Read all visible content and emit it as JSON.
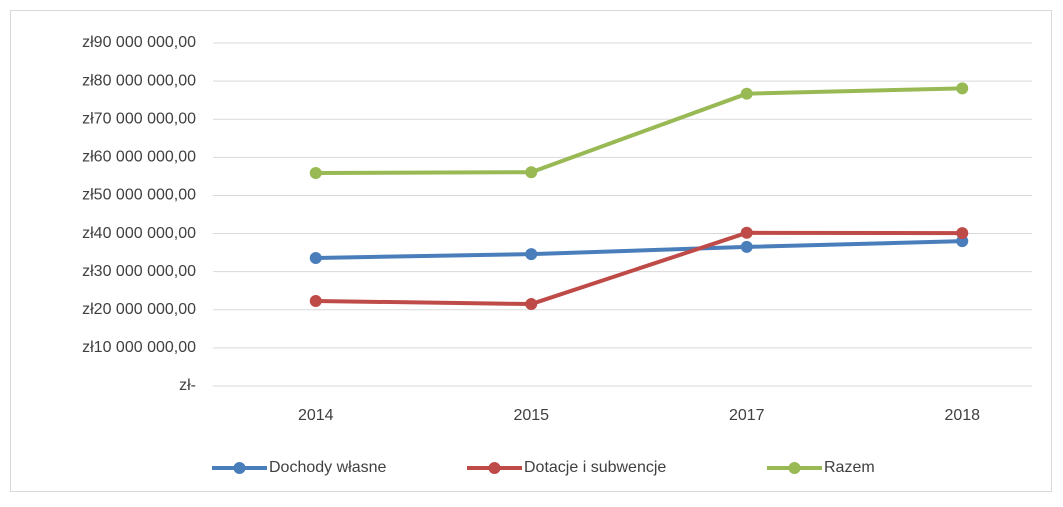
{
  "chart_data": {
    "type": "line",
    "categories": [
      "2014",
      "2015",
      "2017",
      "2018"
    ],
    "series": [
      {
        "name": "Dochody własne",
        "color": "#4a7ebb",
        "values": [
          33600000,
          34600000,
          36500000,
          38000000
        ]
      },
      {
        "name": "Dotacje i subwencje",
        "color": "#be4b48",
        "values": [
          22300000,
          21500000,
          40200000,
          40100000
        ]
      },
      {
        "name": "Razem",
        "color": "#98b954",
        "values": [
          55900000,
          56100000,
          76700000,
          78100000
        ]
      }
    ],
    "ylim": [
      0,
      90000000
    ],
    "yticks": [
      {
        "value": 0,
        "label": "zł-"
      },
      {
        "value": 10000000,
        "label": "zł10 000 000,00"
      },
      {
        "value": 20000000,
        "label": "zł20 000 000,00"
      },
      {
        "value": 30000000,
        "label": "zł30 000 000,00"
      },
      {
        "value": 40000000,
        "label": "zł40 000 000,00"
      },
      {
        "value": 50000000,
        "label": "zł50 000 000,00"
      },
      {
        "value": 60000000,
        "label": "zł60 000 000,00"
      },
      {
        "value": 70000000,
        "label": "zł70 000 000,00"
      },
      {
        "value": 80000000,
        "label": "zł80 000 000,00"
      },
      {
        "value": 90000000,
        "label": "zł90 000 000,00"
      }
    ],
    "grid": true,
    "legend": "bottom"
  }
}
